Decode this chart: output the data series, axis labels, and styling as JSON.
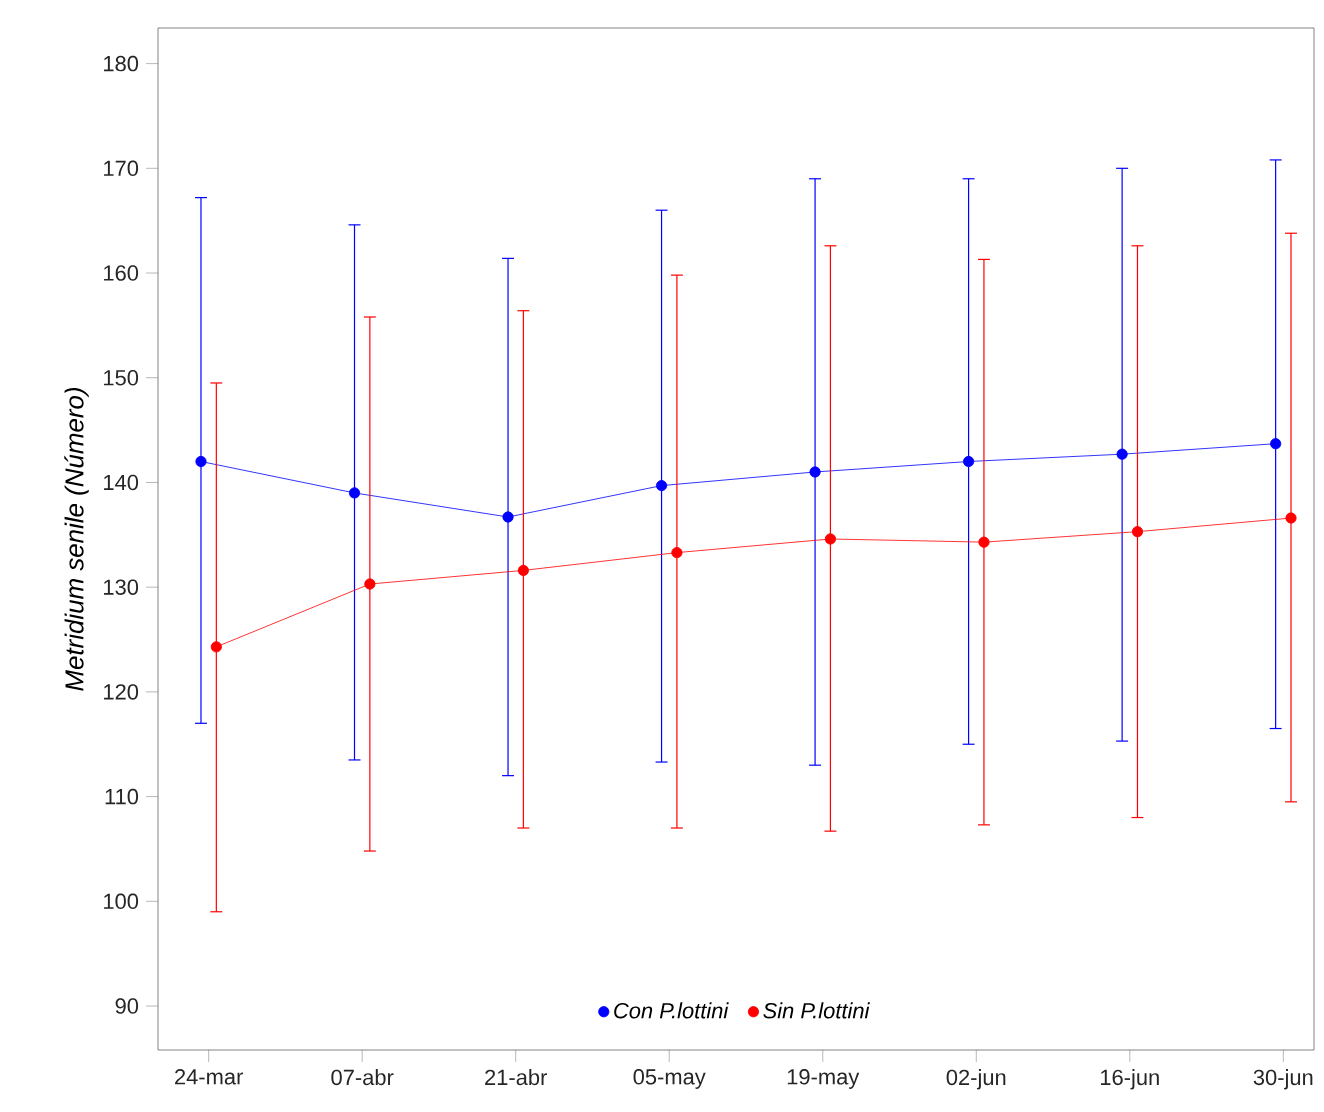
{
  "chart_data": {
    "type": "line",
    "ylabel": "Metridium senile (Número)",
    "categories": [
      "24-mar",
      "07-abr",
      "21-abr",
      "05-may",
      "19-may",
      "02-jun",
      "16-jun",
      "30-jun"
    ],
    "series": [
      {
        "name": "Con P.lottini",
        "color": "#0000ff",
        "values": [
          142,
          139,
          136.7,
          139.7,
          141,
          142,
          142.7,
          143.7
        ],
        "errors": [
          [
            117,
            167.2
          ],
          [
            113.5,
            164.6
          ],
          [
            112,
            161.4
          ],
          [
            113.3,
            166
          ],
          [
            113,
            169
          ],
          [
            115,
            169
          ],
          [
            115.3,
            170
          ],
          [
            116.5,
            170.8
          ]
        ]
      },
      {
        "name": "Sin P.lottini",
        "color": "#ff0000",
        "values": [
          124.3,
          130.3,
          131.6,
          133.3,
          134.6,
          134.3,
          135.3,
          136.6
        ],
        "errors": [
          [
            99,
            149.5
          ],
          [
            104.8,
            155.8
          ],
          [
            107,
            156.4
          ],
          [
            107,
            159.8
          ],
          [
            106.7,
            162.6
          ],
          [
            107.3,
            161.3
          ],
          [
            108,
            162.6
          ],
          [
            109.5,
            163.8
          ]
        ]
      }
    ],
    "ylim": [
      85.8,
      183.4
    ],
    "yticks": [
      90,
      100,
      110,
      120,
      130,
      140,
      150,
      160,
      170,
      180
    ],
    "legend": "bottom",
    "marker": "circle",
    "line_style": "solid",
    "grid": false
  }
}
